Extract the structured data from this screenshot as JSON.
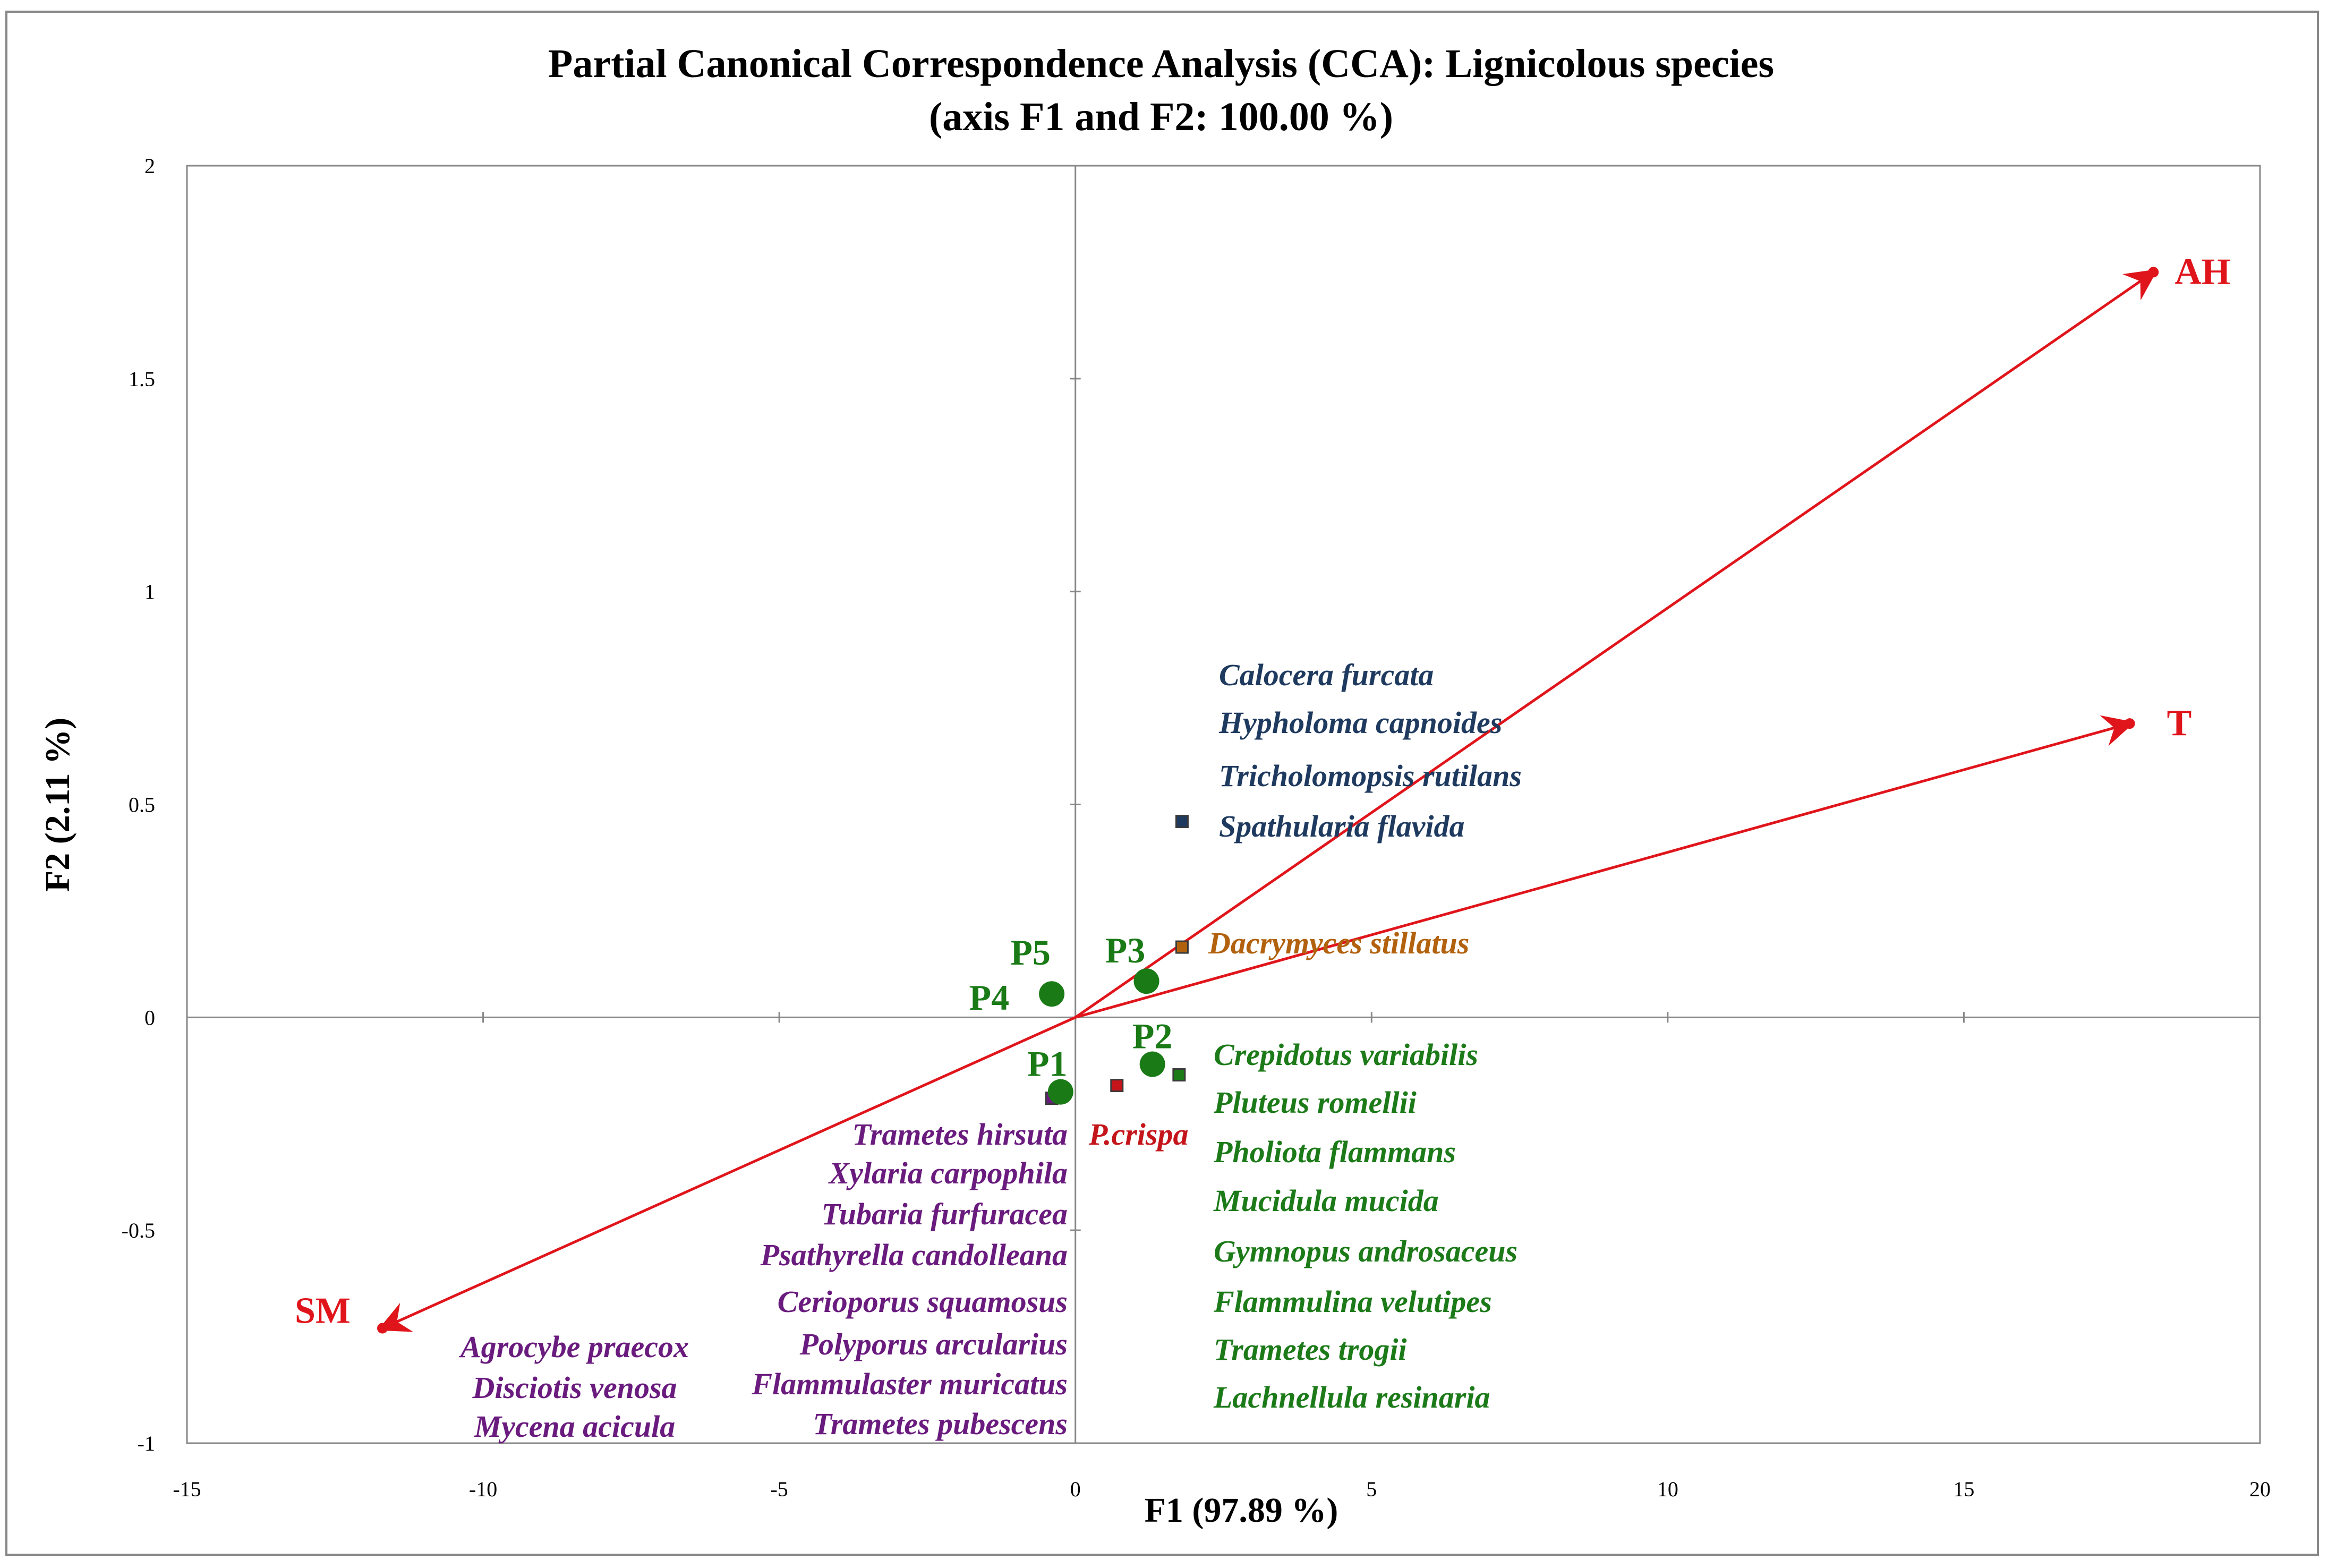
{
  "chart_data": {
    "type": "scatter",
    "title": "Partial Canonical Correspondence Analysis (CCA): Lignicolous species",
    "subtitle": "(axis F1 and F2: 100.00 %)",
    "xlabel": "F1 (97.89 %)",
    "ylabel": "F2 (2.11 %)",
    "xlim": [
      -15,
      20
    ],
    "ylim": [
      -1,
      2
    ],
    "xticks": [
      -15,
      -10,
      -5,
      0,
      5,
      10,
      15,
      20
    ],
    "yticks": [
      -1,
      -0.5,
      0,
      0.5,
      1,
      1.5,
      2
    ],
    "xtick_labels": [
      "-15",
      "-10",
      "-5",
      "0",
      "5",
      "10",
      "15",
      "20"
    ],
    "ytick_labels": [
      "-1",
      "-0.5",
      "0",
      "0.5",
      "1",
      "1.5",
      "2"
    ],
    "grid": false,
    "colors": {
      "arrow": "#e0151b",
      "site": "#1a7a16",
      "blue_group": "#1f3a5f",
      "orange_group": "#b2620e",
      "green_group": "#1c7a19",
      "purple_group": "#6a1b7e",
      "red_group": "#c4151b",
      "axis": "#878787",
      "frame": "#878787"
    },
    "arrows": [
      {
        "label": "AH",
        "x": 18.2,
        "y": 1.75
      },
      {
        "label": "T",
        "x": 17.8,
        "y": 0.69
      },
      {
        "label": "SM",
        "x": -11.7,
        "y": -0.73
      }
    ],
    "sites": [
      {
        "label": "P5",
        "x": -0.4,
        "y": 0.055
      },
      {
        "label": "P4",
        "x": -0.4,
        "y": 0.055
      },
      {
        "label": "P3",
        "x": 1.2,
        "y": 0.085
      },
      {
        "label": "P2",
        "x": 1.3,
        "y": -0.11
      },
      {
        "label": "P1",
        "x": -0.25,
        "y": -0.175
      }
    ],
    "species_groups": [
      {
        "name": "blue",
        "marker": {
          "x": 1.8,
          "y": 0.46
        },
        "color_key": "blue_group",
        "species": [
          "Calocera furcata",
          "Hypholoma capnoides",
          "Tricholomopsis rutilans",
          "Spathularia flavida"
        ]
      },
      {
        "name": "orange",
        "marker": {
          "x": 1.8,
          "y": 0.165
        },
        "color_key": "orange_group",
        "species": [
          "Dacrymyces stillatus"
        ]
      },
      {
        "name": "green",
        "marker": {
          "x": 1.75,
          "y": -0.135
        },
        "color_key": "green_group",
        "species": [
          "Crepidotus variabilis",
          "Pluteus romellii",
          "Pholiota flammans",
          "Mucidula mucida",
          "Gymnopus androsaceus",
          "Flammulina velutipes",
          "Trametes trogii",
          "Lachnellula resinaria"
        ]
      },
      {
        "name": "red",
        "marker": {
          "x": 0.7,
          "y": -0.16
        },
        "color_key": "red_group",
        "species": [
          "P.crispa"
        ]
      },
      {
        "name": "purple_right",
        "marker": {
          "x": -0.4,
          "y": -0.19
        },
        "color_key": "purple_group",
        "species": [
          "Trametes hirsuta",
          "Xylaria carpophila",
          "Tubaria furfuracea",
          "Psathyrella candolleana",
          "Cerioporus squamosus",
          "Polyporus arcularius",
          "Flammulaster muricatus",
          "Trametes pubescens"
        ]
      },
      {
        "name": "purple_left",
        "marker": null,
        "color_key": "purple_group",
        "species": [
          "Agrocybe praecox",
          "Disciotis venosa",
          "Mycena acicula"
        ]
      }
    ]
  }
}
